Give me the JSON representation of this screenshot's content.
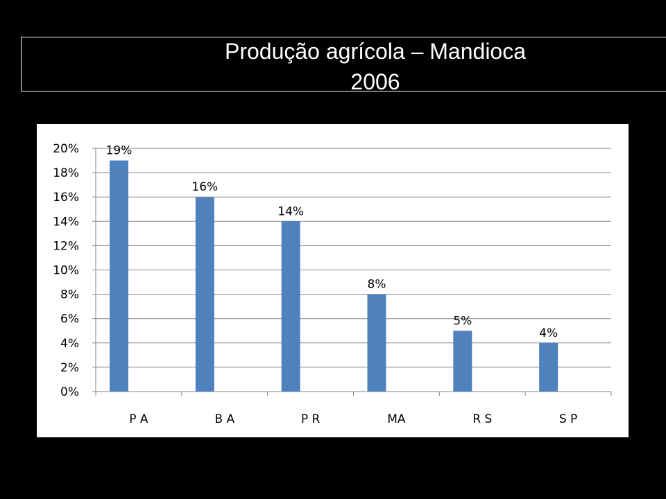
{
  "title": {
    "line1": "Produção agrícola – Mandioca",
    "line2": "2006"
  },
  "chart_data": {
    "type": "bar",
    "categories": [
      "P A",
      "B A",
      "P R",
      "MA",
      "R S",
      "S P"
    ],
    "values": [
      0.19,
      0.16,
      0.14,
      0.08,
      0.05,
      0.04
    ],
    "data_labels": [
      "19%",
      "16%",
      "14%",
      "8%",
      "5%",
      "4%"
    ],
    "y_ticks": [
      "0%",
      "2%",
      "4%",
      "6%",
      "8%",
      "10%",
      "12%",
      "14%",
      "16%",
      "18%",
      "20%"
    ],
    "ylim": [
      0,
      0.2
    ],
    "grid": true,
    "legend": "none",
    "colors": {
      "bar": "#4F81BD",
      "grid": "#868686",
      "axis": "#868686",
      "background": "#ffffff",
      "page": "#000000",
      "text": "#000000"
    }
  }
}
